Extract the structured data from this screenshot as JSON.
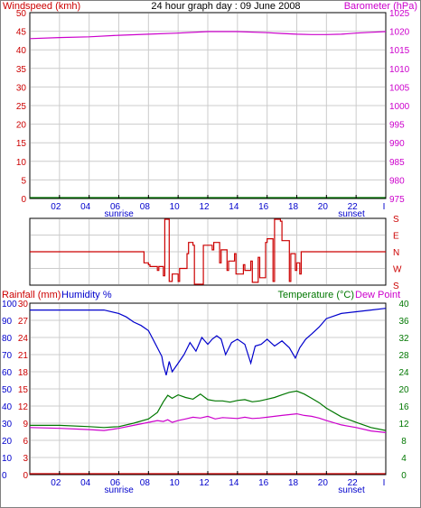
{
  "colors": {
    "red": "#cc0000",
    "magenta": "#cc00cc",
    "green": "#007700",
    "blue": "#0000cc",
    "black": "#000000",
    "grid": "#cccccc",
    "dir_line": "#cc0000"
  },
  "x_ticks": [
    "02",
    "04",
    "06",
    "08",
    "10",
    "12",
    "14",
    "16",
    "18",
    "20",
    "22",
    "I"
  ],
  "sunrise_label": "sunrise",
  "sunset_label": "sunset",
  "chart_data": [
    {
      "type": "line",
      "title": "24 hour graph day : 09 June 2008",
      "left_axis_label": "Windspeed (kmh)",
      "right_axis_label": "Barometer (hPa)",
      "left_ticks": [
        "0",
        "5",
        "10",
        "15",
        "20",
        "25",
        "30",
        "35",
        "40",
        "45",
        "50"
      ],
      "right_ticks": [
        "975",
        "980",
        "985",
        "990",
        "995",
        "1000",
        "1005",
        "1010",
        "1015",
        "1020",
        "1025"
      ],
      "ylim_left": [
        0,
        50
      ],
      "ylim_right": [
        975,
        1025
      ],
      "xlim": [
        0,
        24
      ],
      "grid": true,
      "series": [
        {
          "axis": "left",
          "color": "#007700",
          "x": [
            0,
            24
          ],
          "values": [
            0,
            0
          ]
        },
        {
          "axis": "right",
          "color": "#cc00cc",
          "x": [
            0,
            2,
            4,
            6,
            8,
            10,
            12,
            14,
            16,
            17,
            18,
            19,
            20,
            21,
            22,
            23,
            24
          ],
          "values": [
            1018.0,
            1018.3,
            1018.5,
            1018.9,
            1019.2,
            1019.5,
            1019.9,
            1019.9,
            1019.6,
            1019.4,
            1019.2,
            1019.1,
            1019.1,
            1019.2,
            1019.5,
            1019.7,
            1019.9
          ]
        }
      ]
    },
    {
      "type": "line",
      "title": "",
      "right_ticks": [
        "S",
        "E",
        "N",
        "W",
        "S"
      ],
      "ylim": [
        0,
        360
      ],
      "xlim": [
        0,
        24
      ],
      "grid": true,
      "series": [
        {
          "color": "#cc0000",
          "x": [
            0,
            7.6,
            7.7,
            8.0,
            8.1,
            8.6,
            8.7,
            9.0,
            9.1,
            9.3,
            9.4,
            9.5,
            9.6,
            10.0,
            10.1,
            10.6,
            10.7,
            11.0,
            11.1,
            11.6,
            11.7,
            12.3,
            12.4,
            12.8,
            12.9,
            13.3,
            13.4,
            13.8,
            13.9,
            14.4,
            14.5,
            14.9,
            15.0,
            15.4,
            15.5,
            15.9,
            16.0,
            16.4,
            16.5,
            16.9,
            17.0,
            17.5,
            17.6,
            17.9,
            18.0,
            18.2,
            18.3,
            24
          ],
          "values": [
            180,
            180,
            120,
            110,
            100,
            80,
            100,
            50,
            355,
            355,
            20,
            20,
            60,
            20,
            90,
            170,
            230,
            215,
            5,
            5,
            215,
            190,
            230,
            120,
            190,
            80,
            130,
            170,
            60,
            110,
            80,
            130,
            15,
            150,
            40,
            230,
            250,
            20,
            355,
            345,
            240,
            20,
            170,
            80,
            120,
            60,
            180,
            180
          ]
        }
      ]
    },
    {
      "type": "line",
      "title": "",
      "left_axis_label": "Rainfall (mm)",
      "left_axis_label2": "Humidity %",
      "right_axis_label": "Temperature (°C)",
      "right_axis_label2": "Dew Point",
      "rain_ticks": [
        "0",
        "3",
        "6",
        "9",
        "12",
        "15",
        "18",
        "21",
        "24",
        "27",
        "30"
      ],
      "humidity_ticks": [
        "0",
        "10",
        "20",
        "30",
        "40",
        "50",
        "60",
        "70",
        "80",
        "90",
        "100"
      ],
      "temp_ticks": [
        "0",
        "4",
        "8",
        "12",
        "16",
        "20",
        "24",
        "28",
        "32",
        "36",
        "40"
      ],
      "ylim_rain": [
        0,
        30
      ],
      "ylim_humidity": [
        0,
        100
      ],
      "ylim_temp": [
        0,
        40
      ],
      "xlim": [
        0,
        24
      ],
      "grid": true,
      "series": [
        {
          "name": "Humidity %",
          "axis": "humidity",
          "color": "#0000cc",
          "x": [
            0,
            2,
            4,
            5,
            6,
            6.5,
            7,
            7.5,
            8,
            8.3,
            8.6,
            8.9,
            9.0,
            9.2,
            9.4,
            9.6,
            10.0,
            10.4,
            10.8,
            11.2,
            11.6,
            12.0,
            12.3,
            12.6,
            12.9,
            13.2,
            13.6,
            14.0,
            14.5,
            14.9,
            15.2,
            15.6,
            16.0,
            16.5,
            17.0,
            17.5,
            17.9,
            18.2,
            18.6,
            19.0,
            19.5,
            20.0,
            21.0,
            22.0,
            23.0,
            24
          ],
          "values": [
            96,
            96,
            96,
            96,
            94,
            92,
            89,
            87,
            84,
            79,
            74,
            69,
            64,
            58,
            66,
            60,
            65,
            70,
            77,
            72,
            80,
            76,
            79,
            81,
            79,
            70,
            77,
            79,
            76,
            65,
            75,
            76,
            79,
            75,
            78,
            74,
            68,
            74,
            79,
            82,
            86,
            91,
            94,
            95,
            96,
            97
          ]
        },
        {
          "name": "Temperature (°C)",
          "axis": "temp",
          "color": "#007700",
          "x": [
            0,
            2,
            4,
            5,
            6,
            7,
            8,
            8.6,
            9.0,
            9.3,
            9.6,
            10.0,
            10.5,
            11.0,
            11.5,
            12.0,
            12.5,
            13.0,
            13.5,
            14.0,
            14.5,
            15.0,
            15.5,
            16.0,
            16.5,
            17.0,
            17.5,
            18.0,
            18.5,
            19.0,
            19.5,
            20.0,
            21.0,
            22.0,
            23.0,
            24
          ],
          "values": [
            11.5,
            11.5,
            11.2,
            11.0,
            11.2,
            12.0,
            13.0,
            14.5,
            17.0,
            18.5,
            17.8,
            18.6,
            18.0,
            17.6,
            18.8,
            17.5,
            17.2,
            17.2,
            16.9,
            17.3,
            17.5,
            17.0,
            17.2,
            17.6,
            18.0,
            18.6,
            19.2,
            19.5,
            18.8,
            17.8,
            16.8,
            15.5,
            13.5,
            12.2,
            11.0,
            10.3
          ]
        },
        {
          "name": "Dew Point",
          "axis": "temp",
          "color": "#cc00cc",
          "x": [
            0,
            2,
            4,
            5,
            6,
            7,
            8,
            8.6,
            9.0,
            9.3,
            9.6,
            10.0,
            10.5,
            11.0,
            11.5,
            12.0,
            12.5,
            13.0,
            13.5,
            14.0,
            14.5,
            15.0,
            15.5,
            16.0,
            16.5,
            17.0,
            17.5,
            18.0,
            18.5,
            19.0,
            19.5,
            20.0,
            21.0,
            22.0,
            23.0,
            24
          ],
          "values": [
            11.0,
            10.8,
            10.5,
            10.3,
            10.8,
            11.5,
            12.2,
            12.6,
            12.4,
            12.8,
            12.2,
            12.6,
            13.0,
            13.4,
            13.2,
            13.6,
            13.0,
            13.3,
            13.2,
            13.1,
            13.4,
            13.1,
            13.2,
            13.4,
            13.6,
            13.8,
            14.0,
            14.2,
            13.8,
            13.6,
            13.2,
            12.6,
            11.6,
            11.0,
            10.2,
            9.8
          ]
        },
        {
          "name": "Rainfall (mm)",
          "axis": "rain",
          "color": "#cc0000",
          "x": [
            0,
            24
          ],
          "values": [
            0,
            0
          ]
        }
      ]
    }
  ]
}
